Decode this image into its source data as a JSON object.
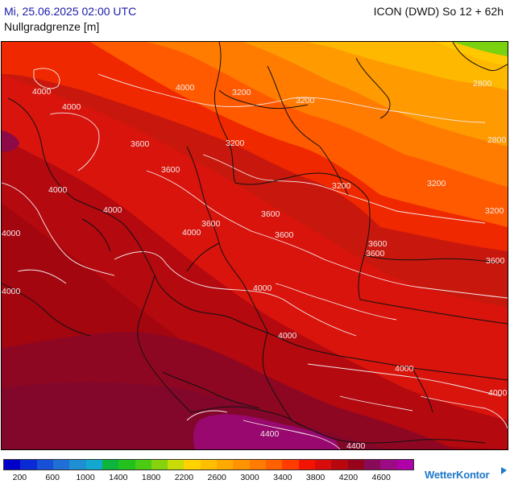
{
  "header": {
    "datetime": "Mi, 25.06.2025 02:00 UTC",
    "model_run": "ICON (DWD) So 12 + 62h",
    "parameter": "Nullgradgrenze [m]"
  },
  "colors": {
    "background_field": "#c21a12",
    "border_line": "#111111",
    "contour_line": "#f3eaea"
  },
  "legend": {
    "colors": [
      "#0000c8",
      "#0a2ad6",
      "#1550d6",
      "#1f6fd6",
      "#1e8fd2",
      "#12a8d0",
      "#0db53c",
      "#22c11c",
      "#4ccb14",
      "#86d20c",
      "#c8dc08",
      "#ffd200",
      "#ffbf00",
      "#ffaa00",
      "#ff9400",
      "#ff7c00",
      "#ff6000",
      "#ff3c00",
      "#f21400",
      "#d80c0c",
      "#b8080e",
      "#96031a",
      "#8a0a5a",
      "#9c0a84",
      "#b000a8"
    ],
    "labels": [
      "200",
      "600",
      "1000",
      "1400",
      "1800",
      "2200",
      "2600",
      "3000",
      "3400",
      "3800",
      "4200",
      "4600"
    ]
  },
  "contour_labels": [
    "4000",
    "4000",
    "4000",
    "4000",
    "4000",
    "4000",
    "4000",
    "4000",
    "4000",
    "4000",
    "4000",
    "4000",
    "3600",
    "3600",
    "3600",
    "3600",
    "3600",
    "3600",
    "3600",
    "3600",
    "3200",
    "3200",
    "3200",
    "3200",
    "3200",
    "3200",
    "2800",
    "2800",
    "4400",
    "4400"
  ],
  "brand": "WetterKontor"
}
